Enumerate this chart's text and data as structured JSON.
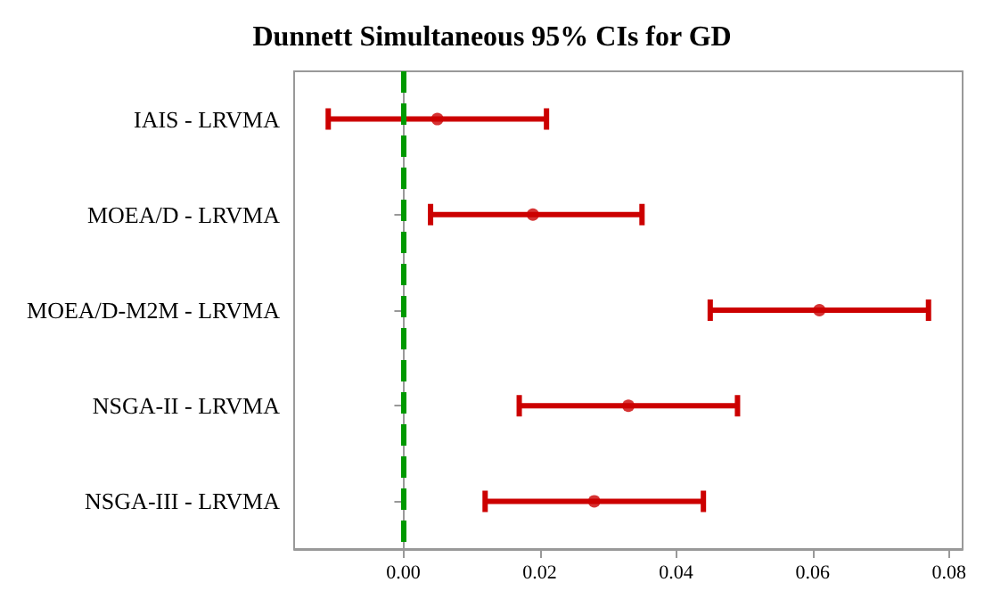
{
  "chart_data": {
    "type": "scatter",
    "orientation": "horizontal",
    "title": "Dunnett Simultaneous 95% CIs for GD",
    "categories": [
      "IAIS - LRVMA",
      "MOEA/D - LRVMA",
      "MOEA/D-M2M - LRVMA",
      "NSGA-II - LRVMA",
      "NSGA-III - LRVMA"
    ],
    "series": [
      {
        "color": "#cc0000",
        "values": [
          0.005,
          0.019,
          0.061,
          0.033,
          0.028
        ],
        "errors": [
          [
            -0.011,
            0.021
          ],
          [
            0.004,
            0.035
          ],
          [
            0.045,
            0.077
          ],
          [
            0.017,
            0.049
          ],
          [
            0.012,
            0.044
          ]
        ]
      }
    ],
    "marker": "circle",
    "xlim": [
      -0.016,
      0.082
    ],
    "xticks": [
      {
        "value": 0,
        "label": "0.00"
      },
      {
        "value": 0.02,
        "label": "0.02"
      },
      {
        "value": 0.04,
        "label": "0.04"
      },
      {
        "value": 0.06,
        "label": "0.06"
      },
      {
        "value": 0.08,
        "label": "0.08"
      }
    ],
    "ref_lines": [
      {
        "axis": "x",
        "value": 0,
        "color": "#009900",
        "line_style": "dashed"
      }
    ],
    "grid": false
  }
}
